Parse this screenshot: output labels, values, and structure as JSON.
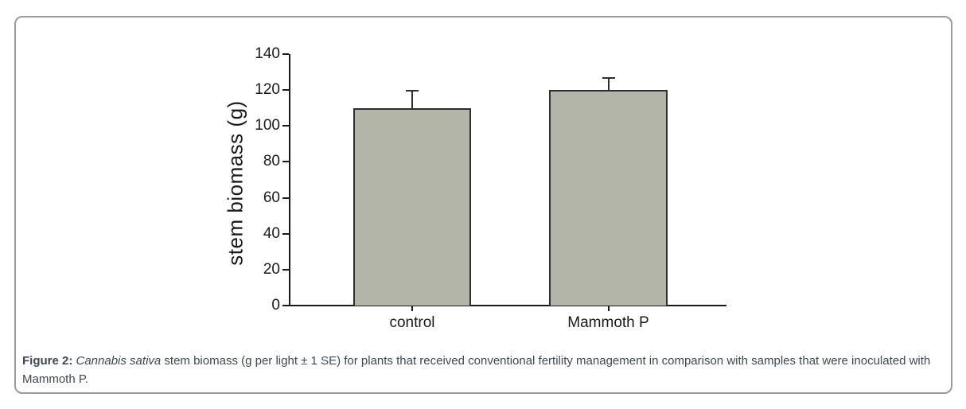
{
  "figure": {
    "caption": {
      "label": "Figure 2:",
      "species": " Cannabis sativa ",
      "text": "stem biomass (g per light ± 1 SE) for plants that received conventional fertility management in comparison with samples that were inoculated with Mammoth P."
    }
  },
  "chart_data": {
    "type": "bar",
    "categories": [
      "control",
      "Mammoth P"
    ],
    "values": [
      110,
      120
    ],
    "errors_upper": [
      9.5,
      6.5
    ],
    "title": "",
    "xlabel": "",
    "ylabel": "stem biomass (g)",
    "ylim": [
      0,
      140
    ],
    "y_ticks": [
      0,
      20,
      40,
      60,
      80,
      100,
      120,
      140
    ],
    "grid": "off",
    "legend": "none",
    "bar_color": "#b3b5a8",
    "bar_border_color": "#2f2f2f",
    "axis_color": "#1a1a1a"
  }
}
